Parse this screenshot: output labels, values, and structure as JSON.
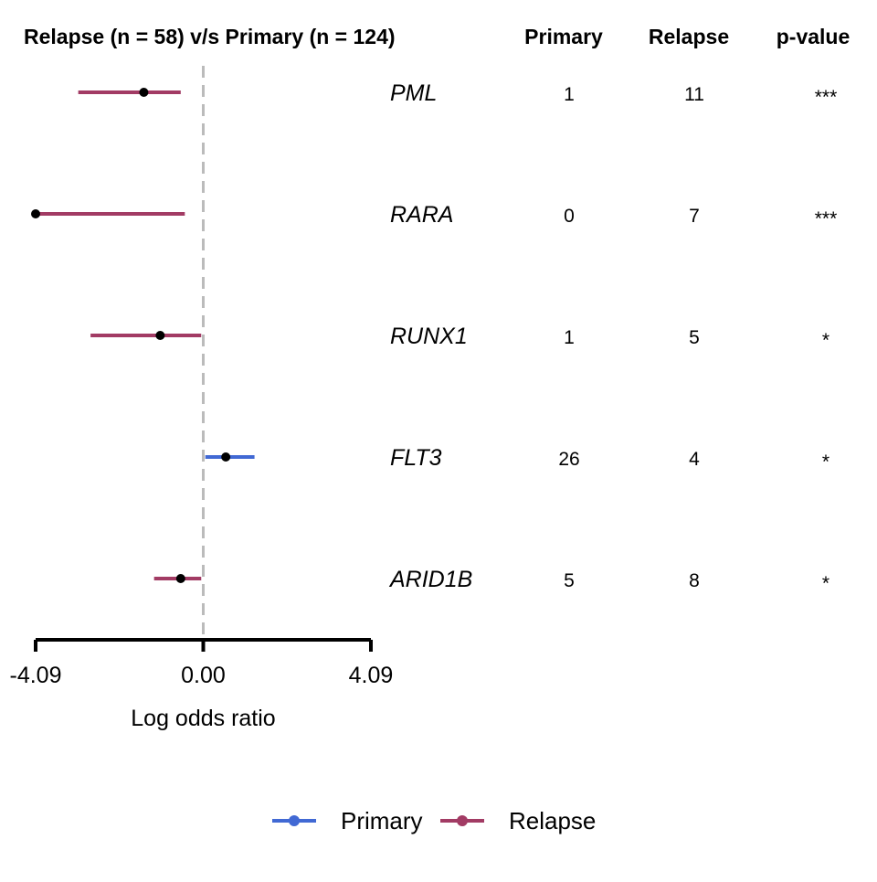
{
  "chart_data": {
    "type": "forest",
    "title": "Relapse (n = 58) v/s Primary (n = 124)",
    "column_headers": {
      "primary": "Primary",
      "relapse": "Relapse",
      "pvalue": "p-value"
    },
    "xlabel": "Log odds ratio",
    "xlim": [
      -4.09,
      4.09
    ],
    "xticks": [
      "-4.09",
      "0.00",
      "4.09"
    ],
    "reference_line": 0,
    "colors": {
      "Primary": "#4169d4",
      "Relapse": "#a23b64",
      "point": "#000000",
      "reference": "#bbbbbb",
      "axis": "#000000"
    },
    "legend": {
      "position": "bottom",
      "entries": [
        {
          "name": "Primary",
          "color": "#4169d4"
        },
        {
          "name": "Relapse",
          "color": "#a23b64"
        }
      ]
    },
    "rows": [
      {
        "gene": "PML",
        "estimate": -1.45,
        "ci_low": -3.05,
        "ci_high": -0.55,
        "group": "Relapse",
        "primary": "1",
        "relapse": "11",
        "pvalue": "***"
      },
      {
        "gene": "RARA",
        "estimate": -4.09,
        "ci_low": -4.09,
        "ci_high": -0.45,
        "group": "Relapse",
        "primary": "0",
        "relapse": "7",
        "pvalue": "***"
      },
      {
        "gene": "RUNX1",
        "estimate": -1.05,
        "ci_low": -2.75,
        "ci_high": -0.05,
        "group": "Relapse",
        "primary": "1",
        "relapse": "5",
        "pvalue": "*"
      },
      {
        "gene": "FLT3",
        "estimate": 0.55,
        "ci_low": 0.05,
        "ci_high": 1.25,
        "group": "Primary",
        "primary": "26",
        "relapse": "4",
        "pvalue": "*"
      },
      {
        "gene": "ARID1B",
        "estimate": -0.55,
        "ci_low": -1.2,
        "ci_high": -0.05,
        "group": "Relapse",
        "primary": "5",
        "relapse": "8",
        "pvalue": "*"
      }
    ]
  }
}
